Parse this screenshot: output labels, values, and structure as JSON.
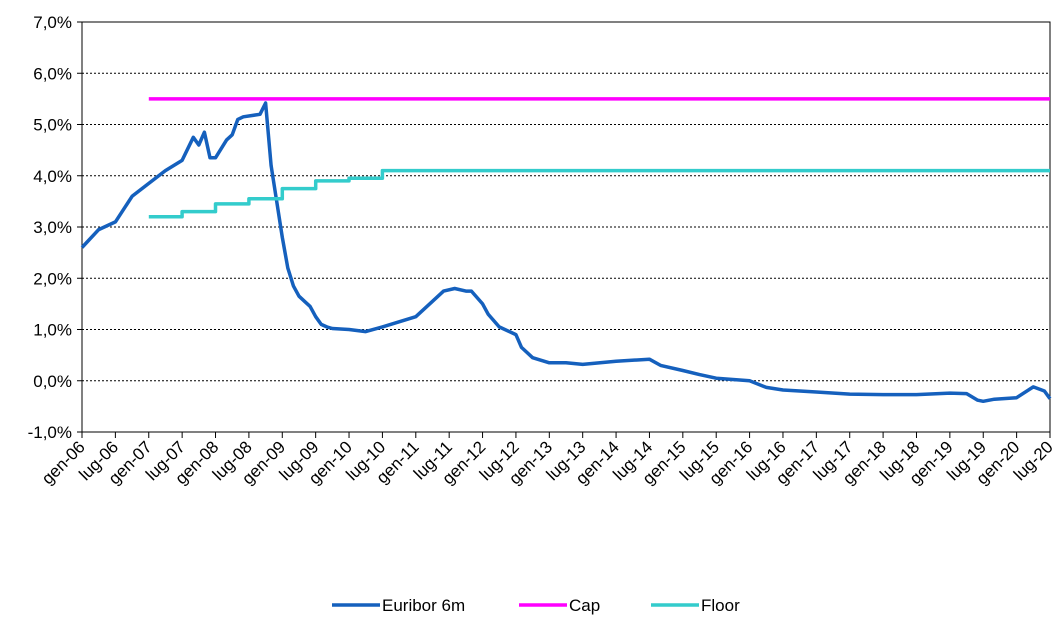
{
  "chart_data": {
    "type": "line",
    "title": "",
    "xlabel": "",
    "ylabel": "",
    "x_ticks": [
      "gen-06",
      "lug-06",
      "gen-07",
      "lug-07",
      "gen-08",
      "lug-08",
      "gen-09",
      "lug-09",
      "gen-10",
      "lug-10",
      "gen-11",
      "lug-11",
      "gen-12",
      "lug-12",
      "gen-13",
      "lug-13",
      "gen-14",
      "lug-14",
      "gen-15",
      "lug-15",
      "gen-16",
      "lug-16",
      "gen-17",
      "lug-17",
      "gen-18",
      "lug-18",
      "gen-19",
      "lug-19",
      "gen-20",
      "lug-20"
    ],
    "y_ticks": [
      "-1,0%",
      "0,0%",
      "1,0%",
      "2,0%",
      "3,0%",
      "4,0%",
      "5,0%",
      "6,0%",
      "7,0%"
    ],
    "ylim": [
      -1.0,
      7.0
    ],
    "xlim": [
      "gen-06",
      "lug-20"
    ],
    "grid": "horizontal dashed",
    "legend_position": "bottom",
    "series": [
      {
        "name": "Euribor 6m",
        "color": "#1560BD",
        "points": [
          [
            "gen-06",
            2.6
          ],
          [
            "apr-06",
            2.95
          ],
          [
            "lug-06",
            3.1
          ],
          [
            "ott-06",
            3.6
          ],
          [
            "gen-07",
            3.85
          ],
          [
            "apr-07",
            4.1
          ],
          [
            "lug-07",
            4.3
          ],
          [
            "set-07",
            4.75
          ],
          [
            "ott-07",
            4.6
          ],
          [
            "nov-07",
            4.85
          ],
          [
            "dic-07",
            4.35
          ],
          [
            "gen-08",
            4.35
          ],
          [
            "mar-08",
            4.7
          ],
          [
            "apr-08",
            4.8
          ],
          [
            "mag-08",
            5.1
          ],
          [
            "giu-08",
            5.15
          ],
          [
            "set-08",
            5.2
          ],
          [
            "ott-08",
            5.42
          ],
          [
            "nov-08",
            4.2
          ],
          [
            "dic-08",
            3.5
          ],
          [
            "gen-09",
            2.8
          ],
          [
            "feb-09",
            2.2
          ],
          [
            "mar-09",
            1.85
          ],
          [
            "apr-09",
            1.65
          ],
          [
            "mag-09",
            1.55
          ],
          [
            "giu-09",
            1.45
          ],
          [
            "lug-09",
            1.25
          ],
          [
            "ago-09",
            1.1
          ],
          [
            "set-09",
            1.05
          ],
          [
            "ott-09",
            1.02
          ],
          [
            "gen-10",
            1.0
          ],
          [
            "apr-10",
            0.96
          ],
          [
            "lug-10",
            1.05
          ],
          [
            "ott-10",
            1.15
          ],
          [
            "gen-11",
            1.25
          ],
          [
            "apr-11",
            1.55
          ],
          [
            "giu-11",
            1.75
          ],
          [
            "ago-11",
            1.8
          ],
          [
            "ott-11",
            1.75
          ],
          [
            "nov-11",
            1.75
          ],
          [
            "gen-12",
            1.5
          ],
          [
            "feb-12",
            1.3
          ],
          [
            "apr-12",
            1.05
          ],
          [
            "lug-12",
            0.9
          ],
          [
            "ago-12",
            0.65
          ],
          [
            "ott-12",
            0.45
          ],
          [
            "gen-13",
            0.35
          ],
          [
            "apr-13",
            0.35
          ],
          [
            "lug-13",
            0.32
          ],
          [
            "gen-14",
            0.38
          ],
          [
            "lug-14",
            0.42
          ],
          [
            "set-14",
            0.3
          ],
          [
            "gen-15",
            0.2
          ],
          [
            "apr-15",
            0.12
          ],
          [
            "lug-15",
            0.05
          ],
          [
            "gen-16",
            0.0
          ],
          [
            "apr-16",
            -0.13
          ],
          [
            "lug-16",
            -0.18
          ],
          [
            "gen-17",
            -0.22
          ],
          [
            "lug-17",
            -0.26
          ],
          [
            "gen-18",
            -0.27
          ],
          [
            "lug-18",
            -0.27
          ],
          [
            "gen-19",
            -0.24
          ],
          [
            "apr-19",
            -0.25
          ],
          [
            "giu-19",
            -0.38
          ],
          [
            "lug-19",
            -0.4
          ],
          [
            "set-19",
            -0.36
          ],
          [
            "gen-20",
            -0.33
          ],
          [
            "apr-20",
            -0.12
          ],
          [
            "giu-20",
            -0.2
          ],
          [
            "lug-20",
            -0.35
          ]
        ]
      },
      {
        "name": "Cap",
        "color": "#FF00FF",
        "points": [
          [
            "gen-07",
            5.5
          ],
          [
            "lug-20",
            5.5
          ]
        ]
      },
      {
        "name": "Floor",
        "color": "#33CCCC",
        "step": true,
        "points": [
          [
            "gen-07",
            3.2
          ],
          [
            "lug-07",
            3.3
          ],
          [
            "gen-08",
            3.45
          ],
          [
            "lug-08",
            3.55
          ],
          [
            "gen-09",
            3.75
          ],
          [
            "lug-09",
            3.9
          ],
          [
            "gen-10",
            3.95
          ],
          [
            "lug-10",
            4.1
          ],
          [
            "lug-20",
            4.1
          ]
        ]
      }
    ]
  }
}
